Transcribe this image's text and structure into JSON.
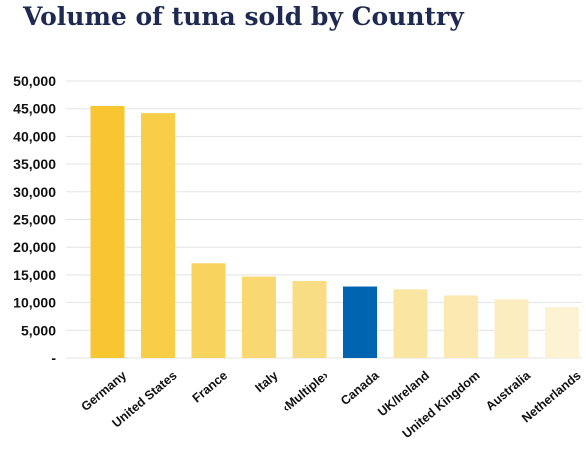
{
  "chart_data": {
    "type": "bar",
    "title": "Volume of tuna sold by Country",
    "xlabel": "",
    "ylabel": "",
    "categories": [
      "Germany",
      "United States",
      "France",
      "Italy",
      "‹Multiple›",
      "Canada",
      "UK/Ireland",
      "United Kingdom",
      "Australia",
      "Netherlands"
    ],
    "values": [
      45500,
      44200,
      17100,
      14700,
      13900,
      12900,
      12400,
      11300,
      10600,
      9200
    ],
    "bar_colors": [
      "#f7c630",
      "#f8cd47",
      "#f8d35e",
      "#f9d871",
      "#f9dd84",
      "#0064b0",
      "#fbe5a2",
      "#fbe9b1",
      "#fcedc0",
      "#fdf2d2"
    ],
    "ylim": [
      0,
      50000
    ],
    "yticks": [
      0,
      5000,
      10000,
      15000,
      20000,
      25000,
      30000,
      35000,
      40000,
      45000,
      50000
    ],
    "ytick_labels": [
      "-",
      "5,000",
      "10,000",
      "15,000",
      "20,000",
      "25,000",
      "30,000",
      "35,000",
      "40,000",
      "45,000",
      "50,000"
    ],
    "grid": true,
    "legend": "none"
  }
}
